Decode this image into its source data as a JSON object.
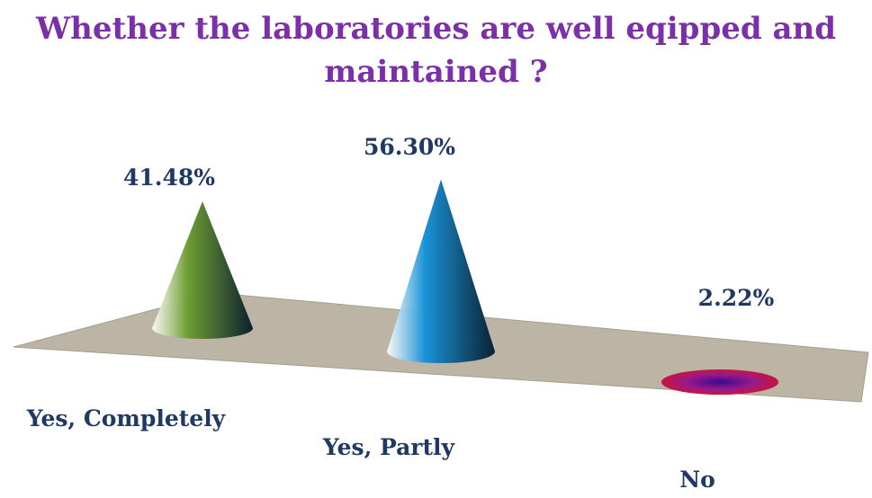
{
  "chart_data": {
    "type": "cone",
    "title": "Whether the laboratories are well eqipped and maintained ?",
    "categories": [
      "Yes, Completely",
      "Yes, Partly",
      "No"
    ],
    "values": [
      41.48,
      56.3,
      2.22
    ],
    "value_labels": [
      "41.48%",
      "56.30%",
      "2.22%"
    ],
    "colors": [
      "#6f9e32",
      "#1a93d8",
      "#c8143c"
    ]
  }
}
